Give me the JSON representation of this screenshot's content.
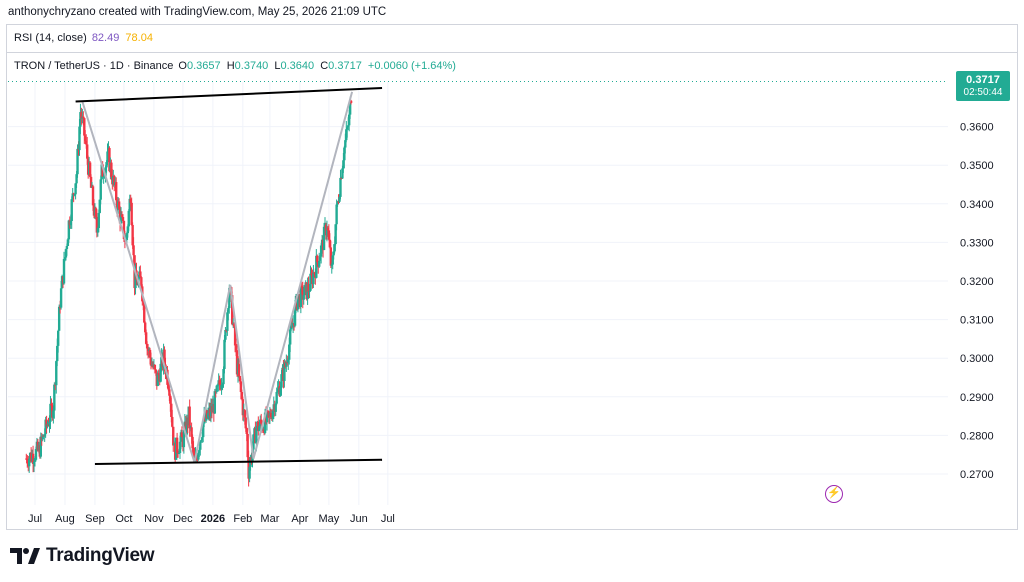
{
  "header": {
    "credit": "anthonychryzano created with TradingView.com, May 25, 2026 21:09 UTC"
  },
  "rsi_legend": {
    "name": "RSI (14, close)",
    "value1": "82.49",
    "value2": "78.04"
  },
  "symbol_legend": {
    "title": "TRON / TetherUS · 1D · Binance",
    "o_label": "O",
    "o_value": "0.3657",
    "h_label": "H",
    "h_value": "0.3740",
    "l_label": "L",
    "l_value": "0.3640",
    "c_label": "C",
    "c_value": "0.3717",
    "change": "+0.0060 (+1.64%)"
  },
  "price_tag": {
    "price": "0.3717",
    "countdown": "02:50:44"
  },
  "footer": {
    "brand": "TradingView"
  },
  "colors": {
    "up": "#22ab94",
    "down": "#f23645",
    "line": "#000000",
    "pattern": "#b2b5be",
    "accent": "#9c27b0"
  },
  "chart_data": {
    "type": "candlestick",
    "symbol": "TRON / TetherUS",
    "interval": "1D",
    "exchange": "Binance",
    "y_axis": {
      "side": "right",
      "ticks": [
        0.27,
        0.28,
        0.29,
        0.3,
        0.31,
        0.32,
        0.33,
        0.34,
        0.35,
        0.36
      ],
      "tick_labels": [
        "0.2700",
        "0.2800",
        "0.2900",
        "0.3000",
        "0.3100",
        "0.3200",
        "0.3300",
        "0.3400",
        "0.3500",
        "0.3600"
      ]
    },
    "x_axis": {
      "ticks": [
        "2025-07-01",
        "2025-08-01",
        "2025-09-01",
        "2025-10-01",
        "2025-11-01",
        "2025-12-01",
        "2026-01-01",
        "2026-02-01",
        "2026-03-01",
        "2026-04-01",
        "2026-05-01",
        "2026-06-01",
        "2026-07-01"
      ],
      "tick_labels": [
        "Jul",
        "Aug",
        "Sep",
        "Oct",
        "Nov",
        "Dec",
        "2026",
        "Feb",
        "Mar",
        "Apr",
        "May",
        "Jun",
        "Jul"
      ]
    },
    "price_path": [
      [
        "2025-06-22",
        0.274
      ],
      [
        "2025-07-05",
        0.276
      ],
      [
        "2025-07-20",
        0.288
      ],
      [
        "2025-07-27",
        0.315
      ],
      [
        "2025-08-05",
        0.335
      ],
      [
        "2025-08-13",
        0.348
      ],
      [
        "2025-08-17",
        0.364
      ],
      [
        "2025-08-21",
        0.358
      ],
      [
        "2025-08-29",
        0.342
      ],
      [
        "2025-09-03",
        0.333
      ],
      [
        "2025-09-08",
        0.348
      ],
      [
        "2025-09-15",
        0.352
      ],
      [
        "2025-09-26",
        0.338
      ],
      [
        "2025-10-03",
        0.33
      ],
      [
        "2025-10-08",
        0.343
      ],
      [
        "2025-10-12",
        0.32
      ],
      [
        "2025-10-19",
        0.32
      ],
      [
        "2025-10-25",
        0.303
      ],
      [
        "2025-11-04",
        0.294
      ],
      [
        "2025-11-11",
        0.3
      ],
      [
        "2025-11-17",
        0.293
      ],
      [
        "2025-11-22",
        0.276
      ],
      [
        "2025-12-01",
        0.279
      ],
      [
        "2025-12-07",
        0.285
      ],
      [
        "2025-12-13",
        0.272
      ],
      [
        "2025-12-22",
        0.283
      ],
      [
        "2026-01-01",
        0.287
      ],
      [
        "2026-01-11",
        0.296
      ],
      [
        "2026-01-18",
        0.319
      ],
      [
        "2026-01-26",
        0.298
      ],
      [
        "2026-02-05",
        0.28
      ],
      [
        "2026-02-07",
        0.271
      ],
      [
        "2026-02-15",
        0.282
      ],
      [
        "2026-02-28",
        0.284
      ],
      [
        "2026-03-10",
        0.292
      ],
      [
        "2026-03-17",
        0.298
      ],
      [
        "2026-03-29",
        0.315
      ],
      [
        "2026-04-10",
        0.318
      ],
      [
        "2026-04-24",
        0.329
      ],
      [
        "2026-04-29",
        0.335
      ],
      [
        "2026-05-04",
        0.322
      ],
      [
        "2026-05-09",
        0.338
      ],
      [
        "2026-05-16",
        0.353
      ],
      [
        "2026-05-22",
        0.362
      ],
      [
        "2026-05-25",
        0.3717
      ]
    ],
    "last_price": 0.3717,
    "annotations": {
      "resistance_line": [
        [
          "2025-08-12",
          0.3665
        ],
        [
          "2026-06-25",
          0.37
        ]
      ],
      "support_line": [
        [
          "2025-09-01",
          0.2726
        ],
        [
          "2026-06-25",
          0.2737
        ]
      ],
      "pattern_path": [
        [
          "2025-08-19",
          0.3665
        ],
        [
          "2025-12-13",
          0.273
        ],
        [
          "2026-01-19",
          0.319
        ],
        [
          "2026-02-12",
          0.274
        ],
        [
          "2026-05-25",
          0.369
        ]
      ]
    }
  }
}
